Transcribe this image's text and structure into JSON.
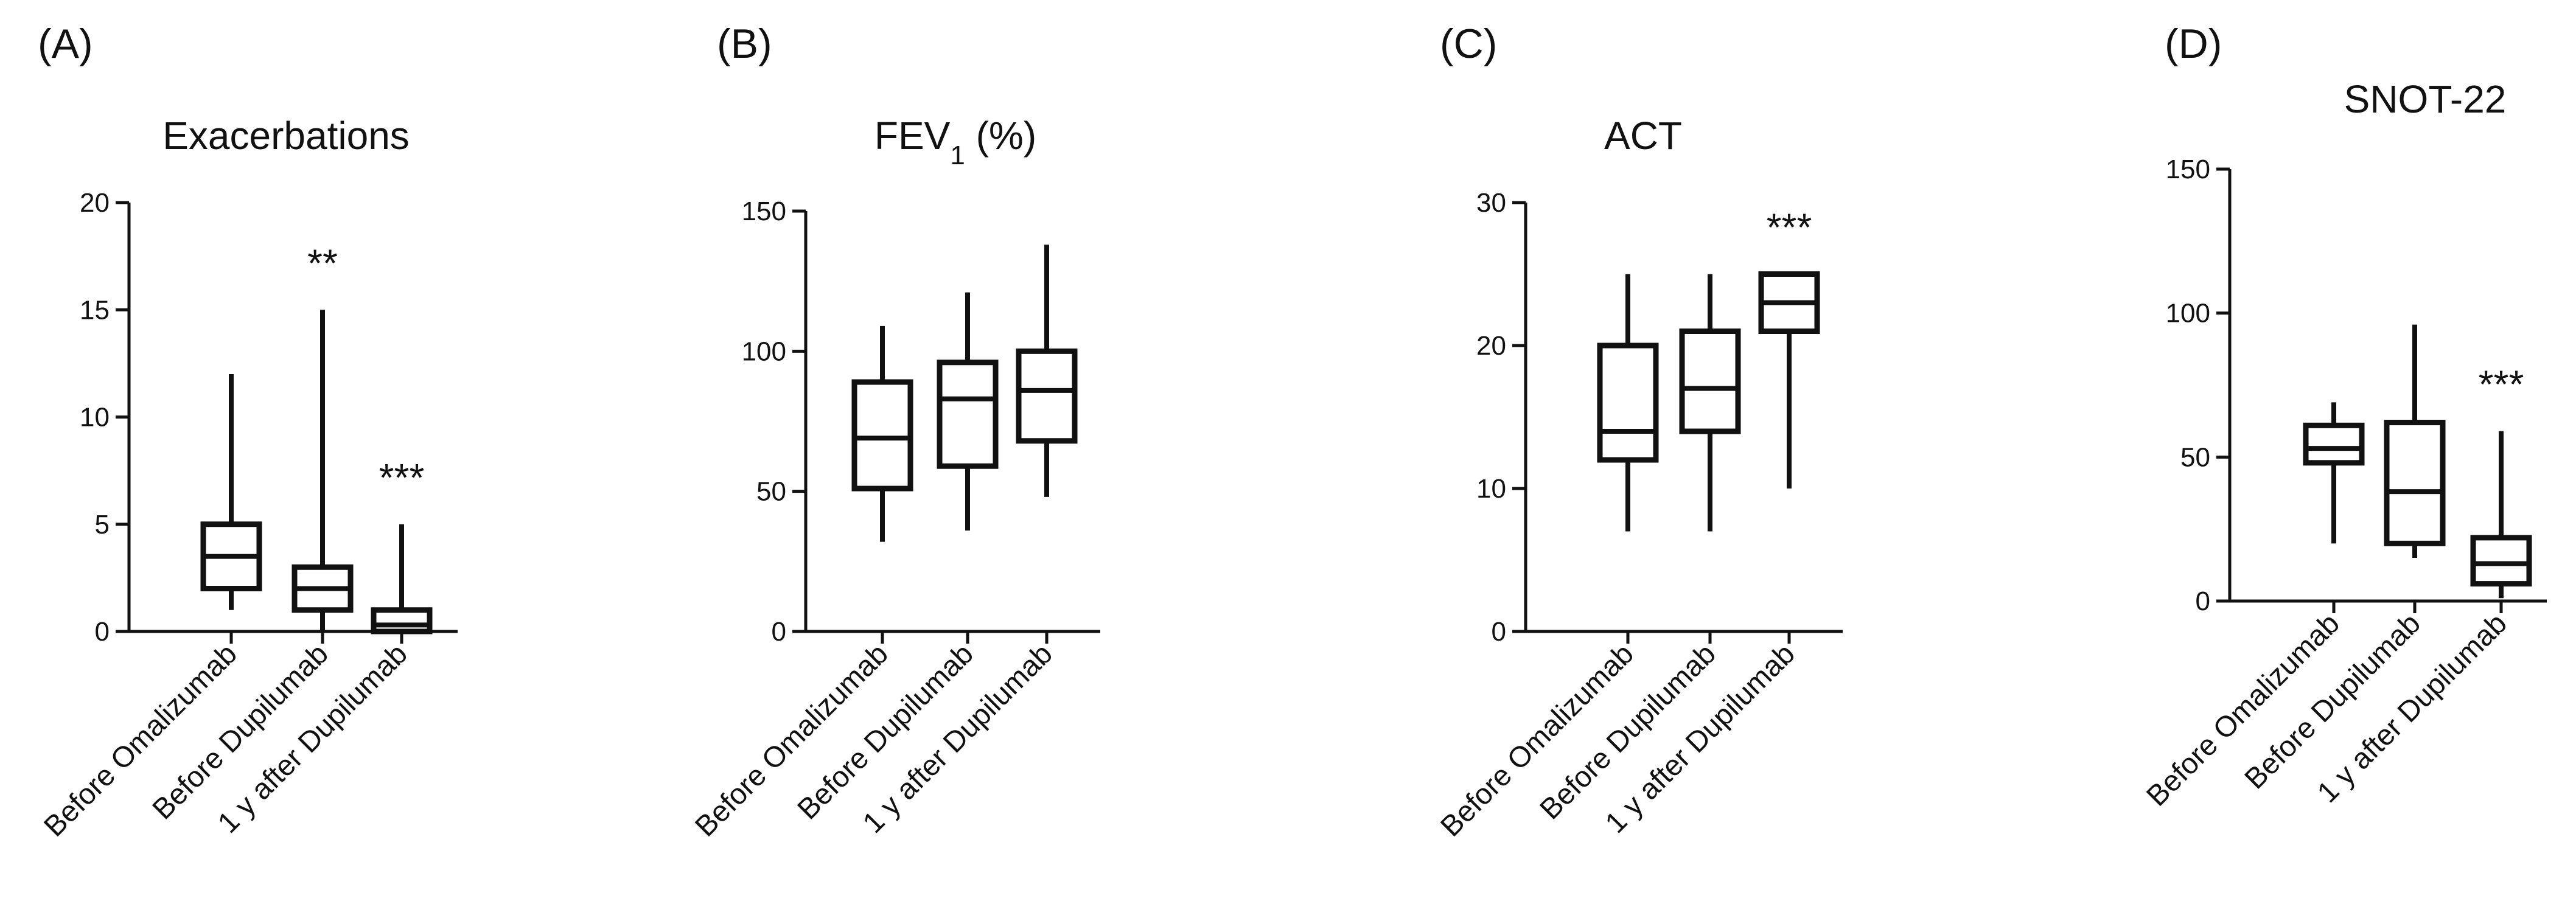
{
  "chart_data": [
    {
      "type": "box",
      "panel": "(A)",
      "title": "Exacerbations",
      "categories": [
        "Before Omalizumab",
        "Before Dupilumab",
        "1 y after Dupilumab"
      ],
      "ylim": [
        0,
        20
      ],
      "yticks": [
        0,
        5,
        10,
        15,
        20
      ],
      "boxes": [
        {
          "min": 1,
          "q1": 2,
          "median": 3.5,
          "q3": 5,
          "max": 12,
          "sig": ""
        },
        {
          "min": 0,
          "q1": 1,
          "median": 2,
          "q3": 3,
          "max": 15,
          "sig": "**"
        },
        {
          "min": 0,
          "q1": 0,
          "median": 0.3,
          "q3": 1,
          "max": 5,
          "sig": "***"
        }
      ]
    },
    {
      "type": "box",
      "panel": "(B)",
      "title": "FEV",
      "title_sub": "1",
      "title_suffix": "  (%)",
      "categories": [
        "Before Omalizumab",
        "Before Dupilumab",
        "1 y after Dupilumab"
      ],
      "ylim": [
        0,
        150
      ],
      "yticks": [
        0,
        50,
        100,
        150
      ],
      "boxes": [
        {
          "min": 32,
          "q1": 51,
          "median": 69,
          "q3": 89,
          "max": 109,
          "sig": ""
        },
        {
          "min": 36,
          "q1": 59,
          "median": 83,
          "q3": 96,
          "max": 121,
          "sig": ""
        },
        {
          "min": 48,
          "q1": 68,
          "median": 86,
          "q3": 100,
          "max": 138,
          "sig": ""
        }
      ]
    },
    {
      "type": "box",
      "panel": "(C)",
      "title": "ACT",
      "categories": [
        "Before Omalizumab",
        "Before Dupilumab",
        "1 y after Dupilumab"
      ],
      "ylim": [
        0,
        30
      ],
      "yticks": [
        0,
        10,
        20,
        30
      ],
      "boxes": [
        {
          "min": 7,
          "q1": 12,
          "median": 14,
          "q3": 20,
          "max": 25,
          "sig": ""
        },
        {
          "min": 7,
          "q1": 14,
          "median": 17,
          "q3": 21,
          "max": 25,
          "sig": ""
        },
        {
          "min": 10,
          "q1": 21,
          "median": 23,
          "q3": 25,
          "max": 25,
          "sig": "***"
        }
      ]
    },
    {
      "type": "box",
      "panel": "(D)",
      "title": "SNOT-22",
      "categories": [
        "Before Omalizumab",
        "Before Dupilumab",
        "1 y after Dupilumab"
      ],
      "ylim": [
        0,
        150
      ],
      "yticks": [
        0,
        50,
        100,
        150
      ],
      "boxes": [
        {
          "min": 20,
          "q1": 48,
          "median": 53,
          "q3": 61,
          "max": 69,
          "sig": ""
        },
        {
          "min": 15,
          "q1": 20,
          "median": 38,
          "q3": 62,
          "max": 96,
          "sig": ""
        },
        {
          "min": 1,
          "q1": 6,
          "median": 13,
          "q3": 22,
          "max": 59,
          "sig": "***"
        }
      ]
    }
  ]
}
